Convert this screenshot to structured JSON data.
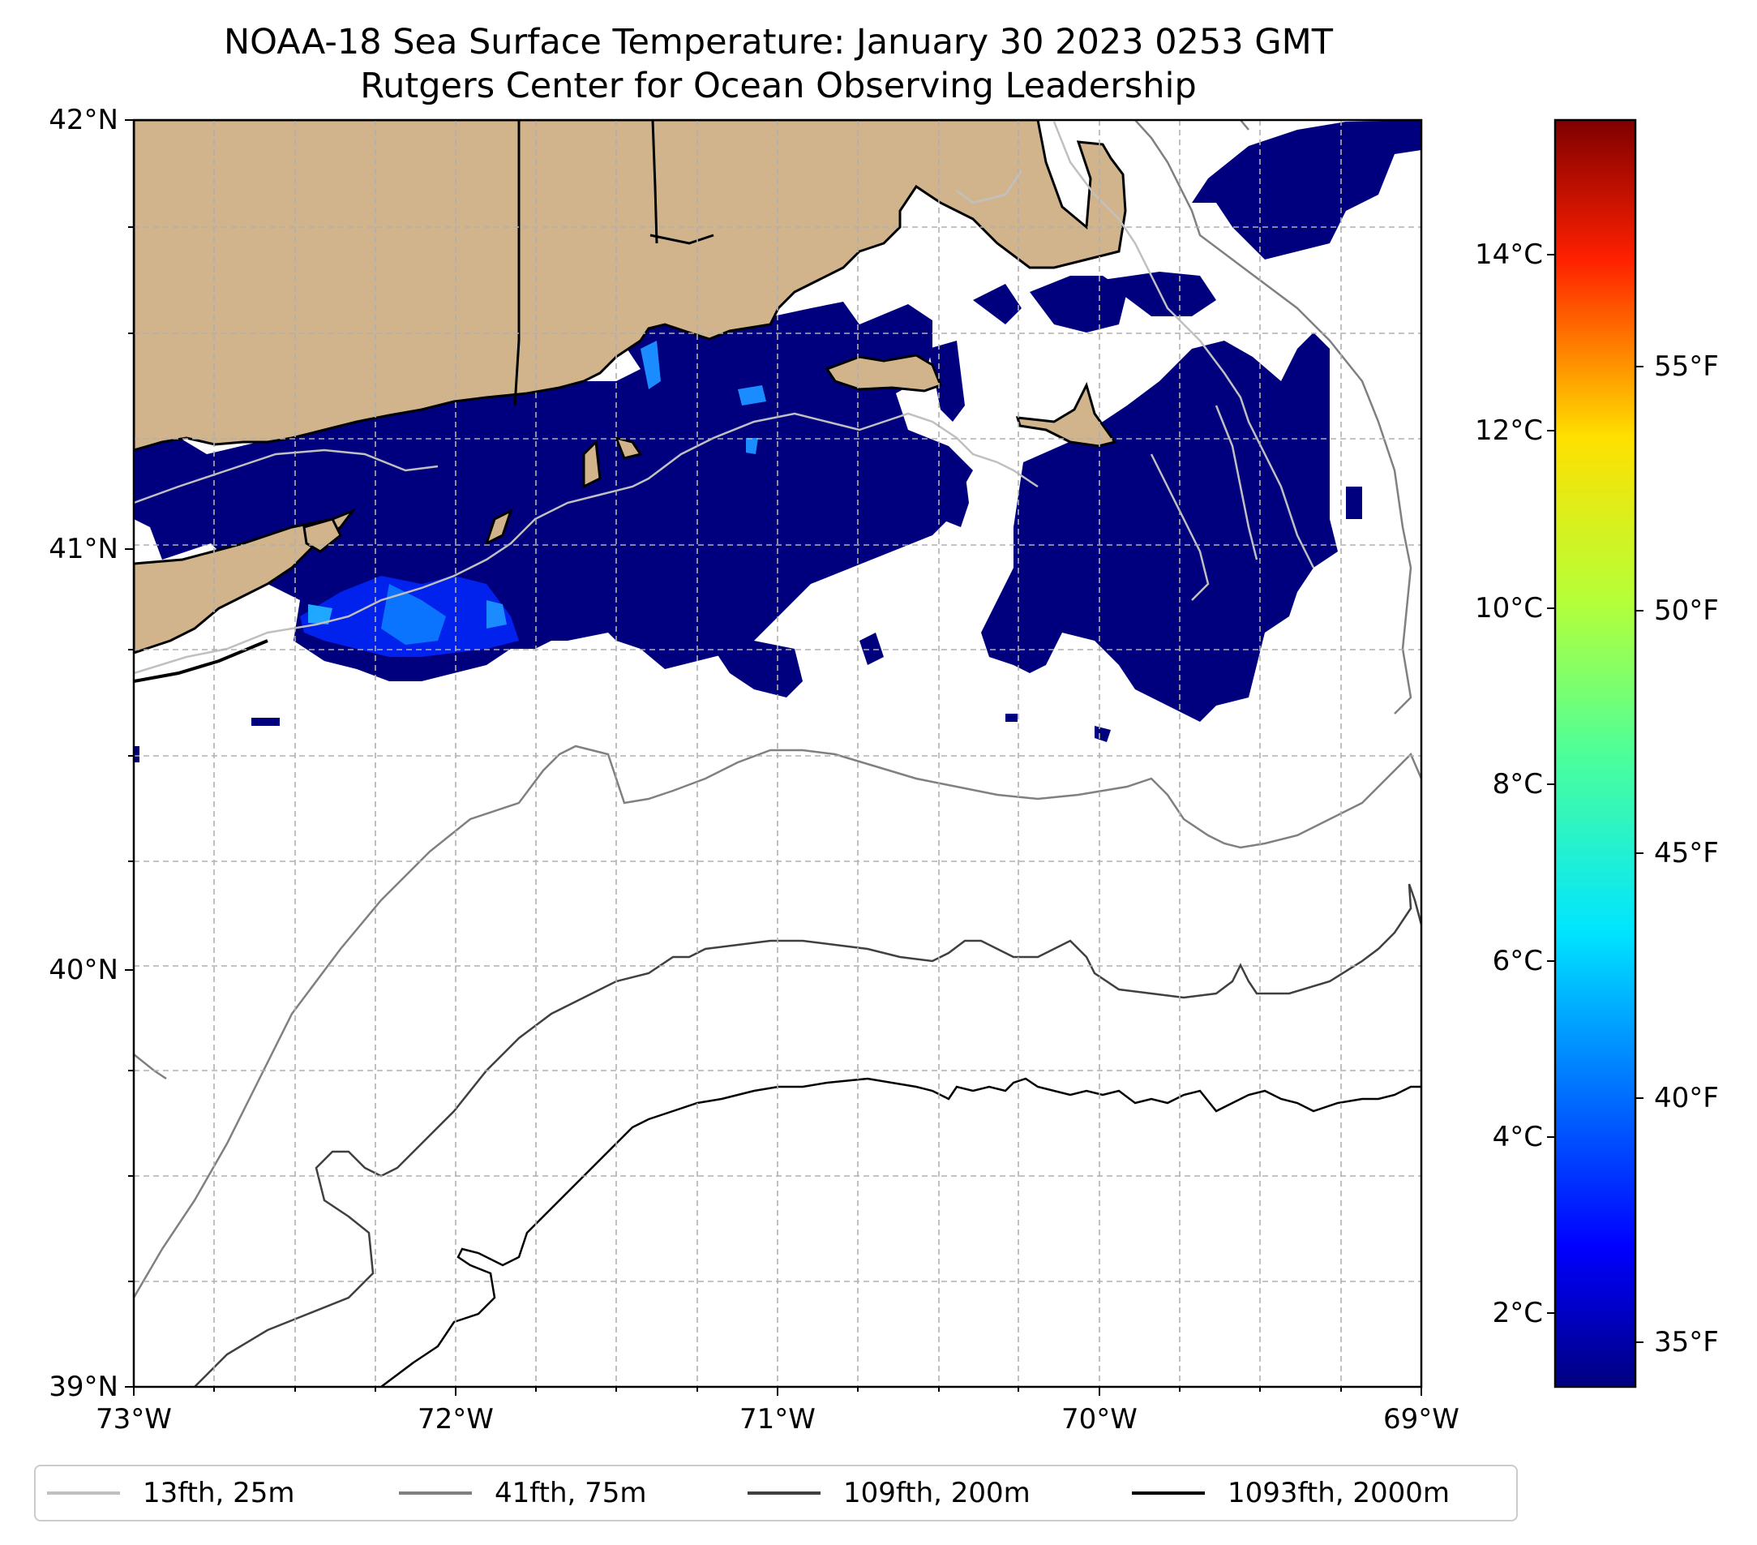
{
  "title": {
    "line1": "NOAA-18 Sea Surface Temperature: January 30 2023 0253 GMT",
    "line2": "Rutgers Center for Ocean Observing Leadership"
  },
  "map": {
    "lon_range": [
      -73,
      -69
    ],
    "lat_range": [
      39,
      42
    ],
    "y_ticks": [
      "42°N",
      "41°N",
      "40°N",
      "39°N"
    ],
    "x_ticks": [
      "73°W",
      "72°W",
      "71°W",
      "70°W",
      "69°W"
    ],
    "land_color": "#d2b48c",
    "sst_color_dominant": "#00007f",
    "gridlines": true
  },
  "colorbar": {
    "celsius_ticks": [
      "14°C",
      "12°C",
      "10°C",
      "8°C",
      "6°C",
      "4°C",
      "2°C"
    ],
    "fahrenheit_ticks": [
      "55°F",
      "50°F",
      "45°F",
      "40°F",
      "35°F"
    ],
    "colormap": "jet"
  },
  "legend": {
    "items": [
      {
        "label": "13fth, 25m",
        "color": "#c0c0c0"
      },
      {
        "label": "41fth, 75m",
        "color": "#808080"
      },
      {
        "label": "109fth, 200m",
        "color": "#404040"
      },
      {
        "label": "1093fth, 2000m",
        "color": "#000000"
      }
    ]
  }
}
